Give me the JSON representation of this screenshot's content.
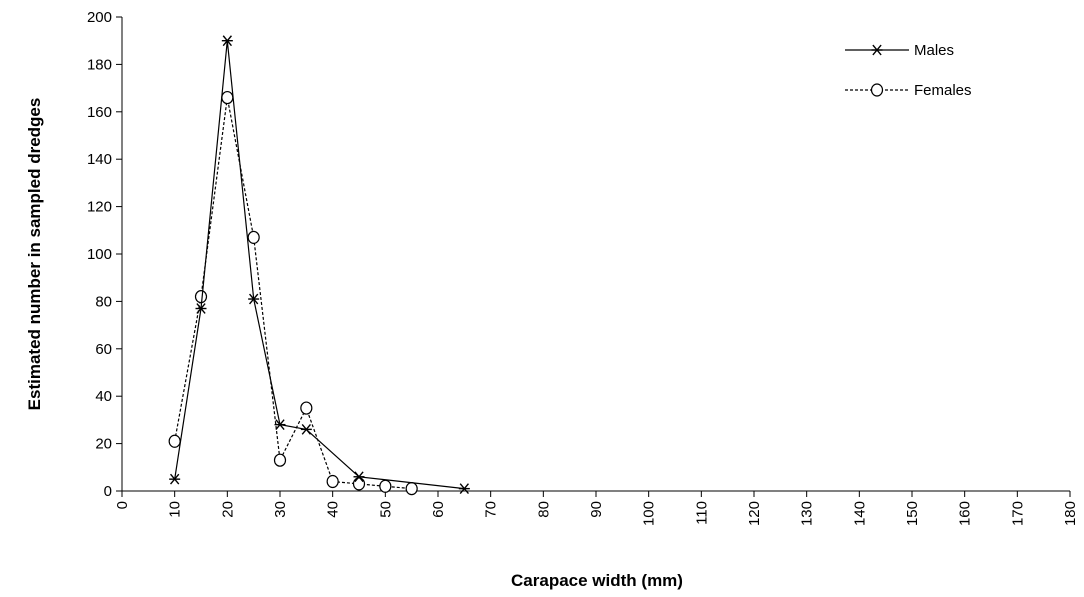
{
  "chart_data": {
    "type": "line",
    "title": "",
    "xlabel": "Carapace width (mm)",
    "ylabel": "Estimated number in sampled dredges",
    "xlim": [
      0,
      180
    ],
    "ylim": [
      0,
      200
    ],
    "x_ticks": [
      0,
      10,
      20,
      30,
      40,
      50,
      60,
      70,
      80,
      90,
      100,
      110,
      120,
      130,
      140,
      150,
      160,
      170,
      180
    ],
    "y_ticks": [
      0,
      20,
      40,
      60,
      80,
      100,
      120,
      140,
      160,
      180,
      200
    ],
    "grid": false,
    "legend_position": "top-right",
    "series": [
      {
        "name": "Males",
        "line_style": "solid",
        "marker": "asterisk",
        "color": "#000000",
        "x": [
          10,
          15,
          20,
          25,
          30,
          35,
          45,
          65
        ],
        "y": [
          5,
          77,
          190,
          81,
          28,
          26,
          6,
          1
        ]
      },
      {
        "name": "Females",
        "line_style": "dashed",
        "marker": "open-circle",
        "color": "#000000",
        "x": [
          10,
          15,
          20,
          25,
          30,
          35,
          40,
          45,
          50,
          55
        ],
        "y": [
          21,
          82,
          166,
          107,
          13,
          35,
          4,
          3,
          2,
          1
        ]
      }
    ]
  }
}
